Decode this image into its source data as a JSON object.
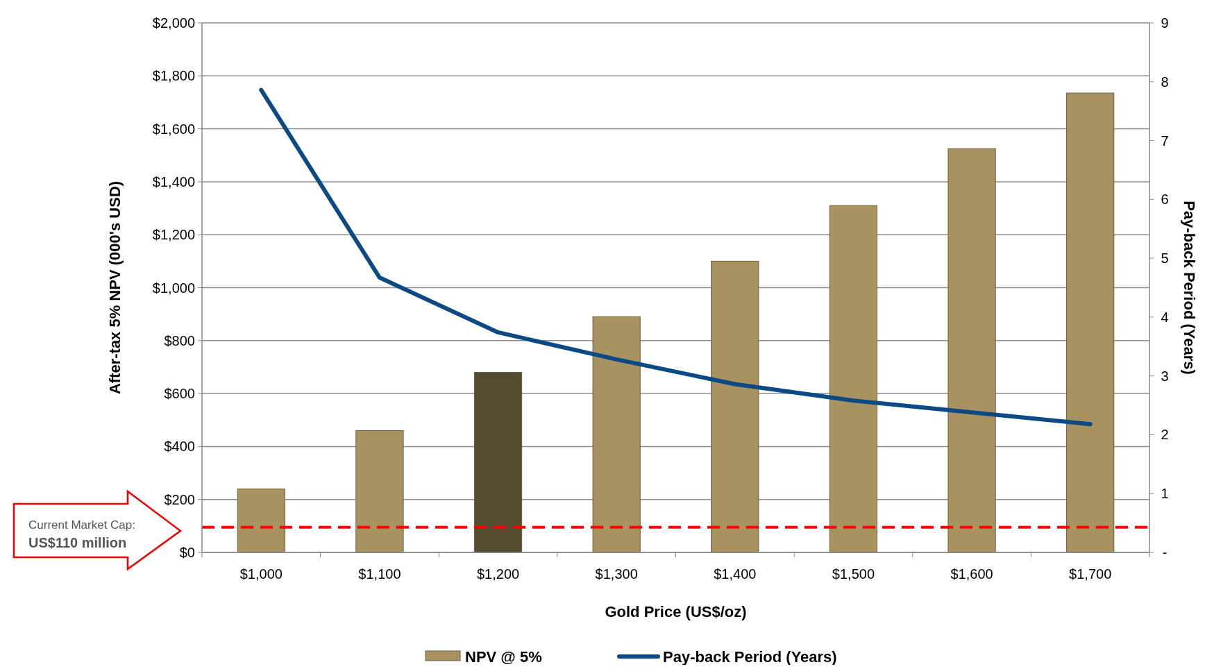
{
  "chart_data": {
    "type": "bar",
    "xlabel": "Gold Price (US$/oz)",
    "ylabel": "After-tax 5% NPV (000's USD)",
    "y2label": "Pay-back Period (Years)",
    "categories": [
      "$1,000",
      "$1,100",
      "$1,200",
      "$1,300",
      "$1,400",
      "$1,500",
      "$1,600",
      "$1,700"
    ],
    "series": [
      {
        "name": "NPV @ 5%",
        "color": "#a89260",
        "colors": [
          "#a89260",
          "#a89260",
          "#564c30",
          "#a89260",
          "#a89260",
          "#a89260",
          "#a89260",
          "#a89260"
        ],
        "values": [
          240,
          460,
          680,
          890,
          1100,
          1310,
          1525,
          1735
        ]
      },
      {
        "name": "Pay-back Period (Years)",
        "type": "line",
        "axis": "y2",
        "color": "#0c4a85",
        "values": [
          7.86,
          4.67,
          3.74,
          3.28,
          2.86,
          2.58,
          2.38,
          2.18
        ]
      }
    ],
    "ylim": [
      0,
      2000
    ],
    "yticks": [
      {
        "value": 0,
        "label": "$0"
      },
      {
        "value": 200,
        "label": "$200"
      },
      {
        "value": 400,
        "label": "$400"
      },
      {
        "value": 600,
        "label": "$600"
      },
      {
        "value": 800,
        "label": "$800"
      },
      {
        "value": 1000,
        "label": "$1,000"
      },
      {
        "value": 1200,
        "label": "$1,200"
      },
      {
        "value": 1400,
        "label": "$1,400"
      },
      {
        "value": 1600,
        "label": "$1,600"
      },
      {
        "value": 1800,
        "label": "$1,800"
      },
      {
        "value": 2000,
        "label": "$2,000"
      }
    ],
    "y2lim": [
      0,
      9
    ],
    "y2ticks": [
      {
        "value": 0,
        "label": "-"
      },
      1,
      2,
      3,
      4,
      5,
      6,
      7,
      8,
      9
    ],
    "ref_lines": [
      {
        "axis": "y",
        "value": 95,
        "color": "#ff0000",
        "line_style": "dashed"
      }
    ],
    "annotations": [
      "Current Market Cap:",
      "US$110 million"
    ],
    "grid": "y",
    "legend": "bottom",
    "marker": "none",
    "line_style": "solid"
  }
}
